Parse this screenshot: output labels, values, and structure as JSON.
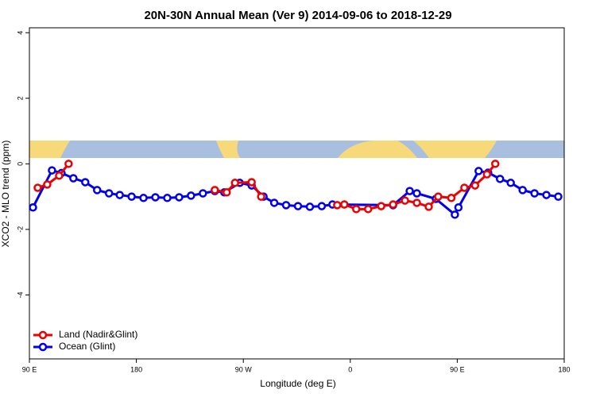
{
  "chart_data": {
    "type": "line",
    "title": "20N-30N Annual Mean (Ver 9)   2014-09-06 to 2018-12-29",
    "x_label": "Longitude (deg E)",
    "y_label": "XCO2 - MLO trend (ppm)",
    "xlim": [
      90,
      540
    ],
    "xticks": [
      {
        "value": 90,
        "label": "90 E"
      },
      180,
      {
        "value": 270,
        "label": "90 W"
      },
      {
        "value": 360,
        "label": "0"
      },
      {
        "value": 450,
        "label": "90 E"
      },
      {
        "value": 540,
        "label": "180"
      }
    ],
    "ylim": [
      -5.95,
      4.15
    ],
    "yticks": [
      -4,
      -2,
      0,
      2,
      4
    ],
    "legend": "bottom-left",
    "series": [
      {
        "name": "Ocean (Glint)",
        "color": "#0000ee",
        "x": [
          93,
          109,
          117,
          127,
          137,
          147,
          157,
          166,
          176,
          186,
          196,
          206,
          216,
          226,
          236,
          246,
          254,
          267,
          277,
          287,
          296,
          306,
          316,
          326,
          336,
          345,
          396,
          410,
          416,
          432,
          448,
          451,
          468,
          476,
          486,
          495,
          505,
          515,
          525,
          535
        ],
        "values": [
          -1.33,
          -0.2,
          -0.28,
          -0.44,
          -0.56,
          -0.8,
          -0.9,
          -0.95,
          -1.0,
          -1.04,
          -1.02,
          -1.04,
          -1.02,
          -0.97,
          -0.9,
          -0.83,
          -0.87,
          -0.58,
          -0.66,
          -1.0,
          -1.19,
          -1.26,
          -1.29,
          -1.31,
          -1.29,
          -1.24,
          -1.26,
          -0.83,
          -0.9,
          -1.07,
          -1.55,
          -1.33,
          -0.22,
          -0.27,
          -0.46,
          -0.58,
          -0.8,
          -0.9,
          -0.95,
          -1.0
        ]
      },
      {
        "name": "Land (Nadir&Glint)",
        "color": "#ee0000",
        "x": [
          97,
          105,
          115,
          123,
          null,
          246,
          256,
          263,
          277,
          285,
          null,
          349,
          355,
          365,
          375,
          386,
          396,
          406,
          416,
          426,
          434,
          445,
          456,
          465,
          475,
          482
        ],
        "values": [
          -0.73,
          -0.63,
          -0.36,
          0.0,
          null,
          -0.8,
          -0.87,
          -0.58,
          -0.56,
          -1.0,
          null,
          -1.26,
          -1.24,
          -1.38,
          -1.38,
          -1.29,
          -1.24,
          -1.12,
          -1.19,
          -1.31,
          -1.0,
          -1.04,
          -0.73,
          -0.66,
          -0.32,
          0.0
        ]
      }
    ]
  }
}
